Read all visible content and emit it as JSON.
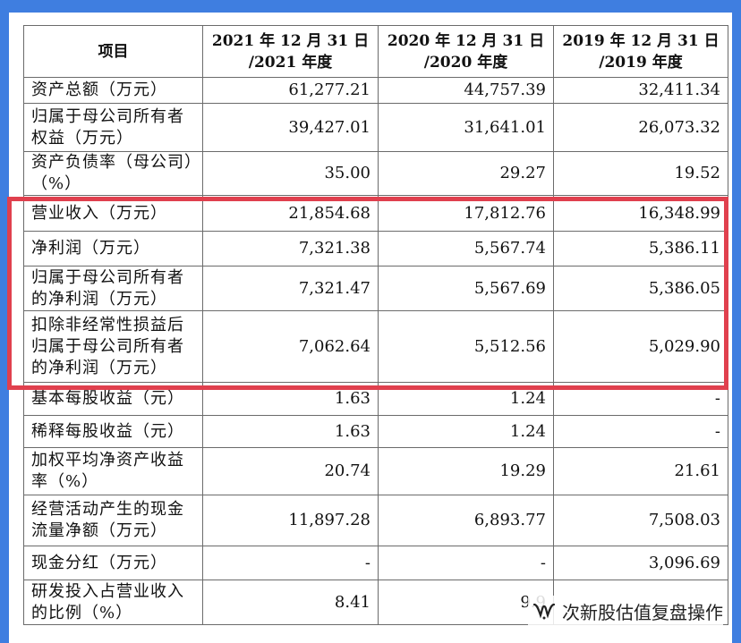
{
  "table": {
    "headers": [
      {
        "line1": "项目",
        "line2": ""
      },
      {
        "line1": "2021 年 12 月 31 日",
        "line2": "/2021 年度"
      },
      {
        "line1": "2020 年 12 月 31 日",
        "line2": "/2020 年度"
      },
      {
        "line1": "2019 年 12 月 31 日",
        "line2": "/2019 年度"
      }
    ],
    "rows": [
      {
        "label": "资产总额（万元）",
        "v2021": "61,277.21",
        "v2020": "44,757.39",
        "v2019": "32,411.34"
      },
      {
        "label": "归属于母公司所有者权益（万元）",
        "v2021": "39,427.01",
        "v2020": "31,641.01",
        "v2019": "26,073.32"
      },
      {
        "label": "资产负债率（母公司）（%）",
        "v2021": "35.00",
        "v2020": "29.27",
        "v2019": "19.52"
      },
      {
        "label": "营业收入（万元）",
        "v2021": "21,854.68",
        "v2020": "17,812.76",
        "v2019": "16,348.99"
      },
      {
        "label": "净利润（万元）",
        "v2021": "7,321.38",
        "v2020": "5,567.74",
        "v2019": "5,386.11"
      },
      {
        "label": "归属于母公司所有者的净利润（万元）",
        "v2021": "7,321.47",
        "v2020": "5,567.69",
        "v2019": "5,386.05"
      },
      {
        "label": "扣除非经常性损益后归属于母公司所有者的净利润（万元）",
        "v2021": "7,062.64",
        "v2020": "5,512.56",
        "v2019": "5,029.90"
      },
      {
        "label": "基本每股收益（元）",
        "v2021": "1.63",
        "v2020": "1.24",
        "v2019": "-"
      },
      {
        "label": "稀释每股收益（元）",
        "v2021": "1.63",
        "v2020": "1.24",
        "v2019": "-"
      },
      {
        "label": "加权平均净资产收益率（%）",
        "v2021": "20.74",
        "v2020": "19.29",
        "v2019": "21.61"
      },
      {
        "label": "经营活动产生的现金流量净额（万元）",
        "v2021": "11,897.28",
        "v2020": "6,893.77",
        "v2019": "7,508.03"
      },
      {
        "label": "现金分红（万元）",
        "v2021": "-",
        "v2020": "-",
        "v2019": "3,096.69"
      },
      {
        "label": "研发投入占营业收入的比例（%）",
        "v2021": "8.41",
        "v2020": "9.9",
        "v2019": ""
      }
    ]
  },
  "watermark": {
    "text": "次新股估值复盘操作",
    "icon": "wechat-channel-icon"
  },
  "colors": {
    "frame": "#3f7ee0",
    "highlight": "#e0404e",
    "grid": "#6b6b6b"
  }
}
